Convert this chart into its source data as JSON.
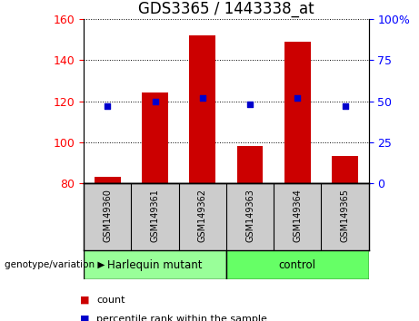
{
  "title": "GDS3365 / 1443338_at",
  "samples": [
    "GSM149360",
    "GSM149361",
    "GSM149362",
    "GSM149363",
    "GSM149364",
    "GSM149365"
  ],
  "counts": [
    83,
    124,
    152,
    98,
    149,
    93
  ],
  "percentiles": [
    47,
    50,
    52,
    48,
    52,
    47
  ],
  "ylim_left": [
    80,
    160
  ],
  "ylim_right": [
    0,
    100
  ],
  "yticks_left": [
    80,
    100,
    120,
    140,
    160
  ],
  "yticks_right": [
    0,
    25,
    50,
    75,
    100
  ],
  "ytick_labels_right": [
    "0",
    "25",
    "50",
    "75",
    "100%"
  ],
  "bar_color": "#cc0000",
  "dot_color": "#0000cc",
  "bar_bottom": 80,
  "groups": [
    {
      "label": "Harlequin mutant",
      "indices": [
        0,
        1,
        2
      ],
      "color": "#99ff99"
    },
    {
      "label": "control",
      "indices": [
        3,
        4,
        5
      ],
      "color": "#66ff66"
    }
  ],
  "group_label": "genotype/variation",
  "legend_count_label": "count",
  "legend_percentile_label": "percentile rank within the sample",
  "label_area_color": "#cccccc",
  "title_fontsize": 12,
  "tick_fontsize": 9
}
